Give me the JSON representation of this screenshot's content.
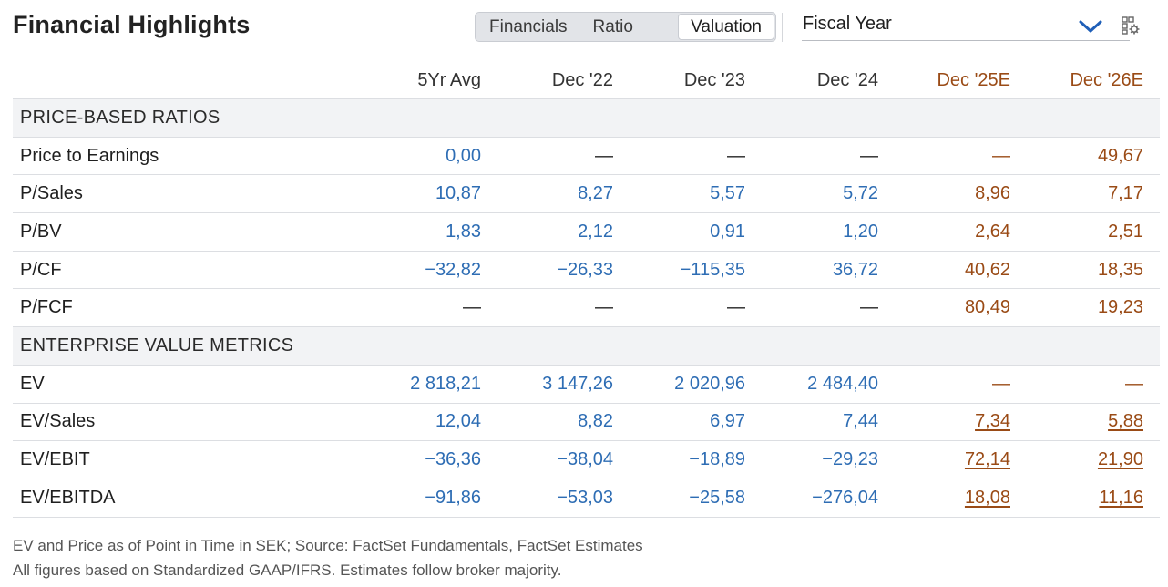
{
  "header": {
    "title": "Financial Highlights",
    "tabs": [
      {
        "label": "Financials",
        "active": false
      },
      {
        "label": "Ratio",
        "active": false
      },
      {
        "label": "Valuation",
        "active": true
      }
    ],
    "period_select": {
      "value": "Fiscal Year",
      "icon": "chevron-down-icon"
    },
    "settings_icon": "settings-grid-icon"
  },
  "table": {
    "columns": [
      "5Yr Avg",
      "Dec '22",
      "Dec '23",
      "Dec '24",
      "Dec '25E",
      "Dec '26E"
    ],
    "estimate_columns": [
      4,
      5
    ],
    "sections": [
      {
        "title": "PRICE-BASED RATIOS",
        "rows": [
          {
            "label": "Price to Earnings",
            "values": [
              "0,00",
              "—",
              "—",
              "—",
              "—",
              "49,67"
            ]
          },
          {
            "label": "P/Sales",
            "values": [
              "10,87",
              "8,27",
              "5,57",
              "5,72",
              "8,96",
              "7,17"
            ]
          },
          {
            "label": "P/BV",
            "values": [
              "1,83",
              "2,12",
              "0,91",
              "1,20",
              "2,64",
              "2,51"
            ]
          },
          {
            "label": "P/CF",
            "values": [
              "−32,82",
              "−26,33",
              "−115,35",
              "36,72",
              "40,62",
              "18,35"
            ]
          },
          {
            "label": "P/FCF",
            "values": [
              "—",
              "—",
              "—",
              "—",
              "80,49",
              "19,23"
            ]
          }
        ]
      },
      {
        "title": "ENTERPRISE VALUE METRICS",
        "rows": [
          {
            "label": "EV",
            "values": [
              "2 818,21",
              "3 147,26",
              "2 020,96",
              "2 484,40",
              "—",
              "—"
            ]
          },
          {
            "label": "EV/Sales",
            "values": [
              "12,04",
              "8,82",
              "6,97",
              "7,44",
              "7,34",
              "5,88"
            ],
            "estimate_links": true
          },
          {
            "label": "EV/EBIT",
            "values": [
              "−36,36",
              "−38,04",
              "−18,89",
              "−29,23",
              "72,14",
              "21,90"
            ],
            "estimate_links": true
          },
          {
            "label": "EV/EBITDA",
            "values": [
              "−91,86",
              "−53,03",
              "−25,58",
              "−276,04",
              "18,08",
              "11,16"
            ],
            "estimate_links": true
          }
        ]
      }
    ]
  },
  "footnotes": [
    "EV and Price as of Point in Time in SEK; Source: FactSet Fundamentals, FactSet Estimates",
    "All figures based on Standardized GAAP/IFRS. Estimates follow broker majority."
  ],
  "colors": {
    "actual_value": "#2e6db4",
    "estimate_value": "#9a4b16",
    "section_bg": "#f2f3f5",
    "accent_chevron": "#1f5fb8"
  }
}
